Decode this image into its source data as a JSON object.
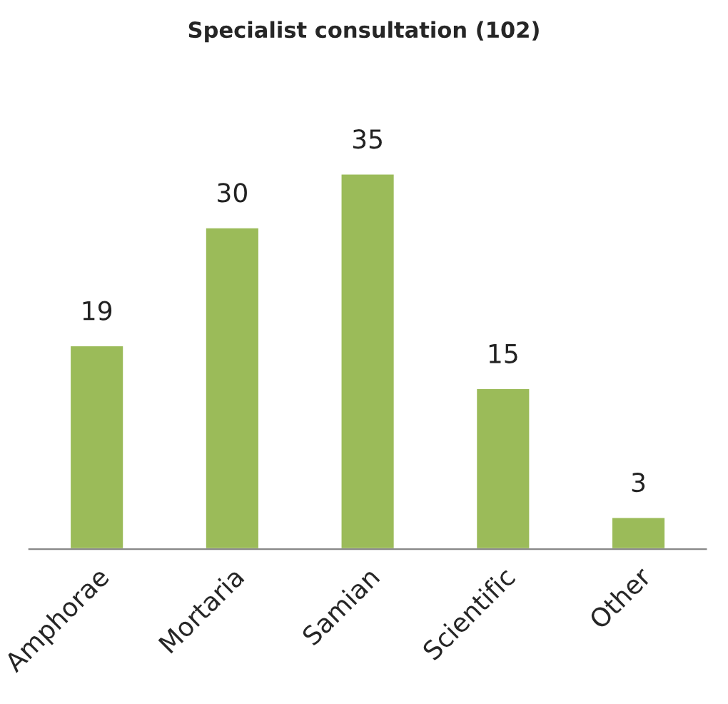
{
  "chart_data": {
    "type": "bar",
    "title": "Specialist consultation (102)",
    "categories": [
      "Amphorae",
      "Mortaria",
      "Samian",
      "Scientific",
      "Other"
    ],
    "values": [
      19,
      30,
      35,
      15,
      3
    ],
    "color": "#9bbb59",
    "data_labels": true,
    "grid": false,
    "legend": false
  }
}
